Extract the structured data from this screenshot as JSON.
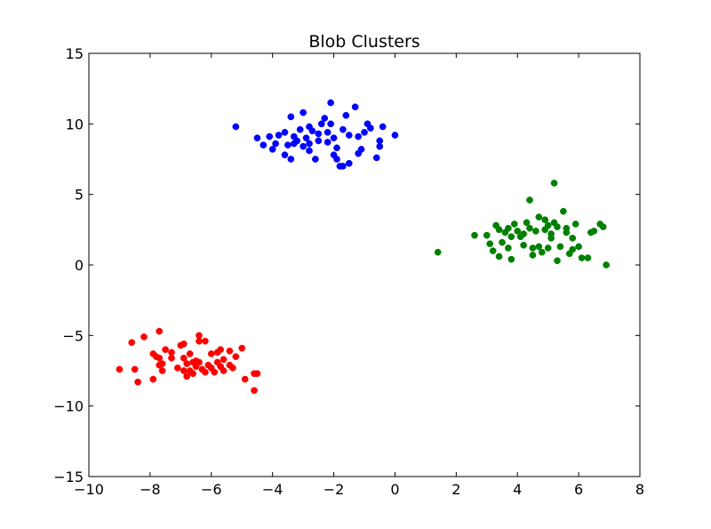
{
  "chart_data": {
    "type": "scatter",
    "title": "Blob Clusters",
    "xlabel": "",
    "ylabel": "",
    "xlim": [
      -10,
      8
    ],
    "ylim": [
      -15,
      15
    ],
    "x_ticks": [
      -10,
      -8,
      -6,
      -4,
      -2,
      0,
      2,
      4,
      6,
      8
    ],
    "y_ticks": [
      -15,
      -10,
      -5,
      0,
      5,
      10,
      15
    ],
    "x_tick_labels": [
      "−10",
      "−8",
      "−6",
      "−4",
      "−2",
      "0",
      "2",
      "4",
      "6",
      "8"
    ],
    "y_tick_labels": [
      "−15",
      "−10",
      "−5",
      "0",
      "5",
      "10",
      "15"
    ],
    "grid": false,
    "legend": "none",
    "series": [
      {
        "color": "#0000ff",
        "points": [
          [
            -5.2,
            9.8
          ],
          [
            -4.5,
            9.0
          ],
          [
            -4.3,
            8.5
          ],
          [
            -4.1,
            9.1
          ],
          [
            -4.0,
            8.2
          ],
          [
            -3.9,
            8.6
          ],
          [
            -3.8,
            9.2
          ],
          [
            -3.6,
            9.4
          ],
          [
            -3.6,
            7.8
          ],
          [
            -3.5,
            8.5
          ],
          [
            -3.4,
            7.5
          ],
          [
            -3.4,
            10.5
          ],
          [
            -3.3,
            9.1
          ],
          [
            -3.3,
            8.6
          ],
          [
            -3.2,
            8.8
          ],
          [
            -3.1,
            9.6
          ],
          [
            -3.0,
            10.8
          ],
          [
            -3.0,
            8.4
          ],
          [
            -2.9,
            9.0
          ],
          [
            -2.8,
            8.6
          ],
          [
            -2.8,
            9.8
          ],
          [
            -2.8,
            8.1
          ],
          [
            -2.7,
            9.5
          ],
          [
            -2.6,
            7.5
          ],
          [
            -2.5,
            8.8
          ],
          [
            -2.5,
            9.3
          ],
          [
            -2.4,
            10.0
          ],
          [
            -2.3,
            10.4
          ],
          [
            -2.2,
            8.7
          ],
          [
            -2.2,
            9.4
          ],
          [
            -2.1,
            10.0
          ],
          [
            -2.1,
            11.5
          ],
          [
            -2.0,
            9.0
          ],
          [
            -2.0,
            7.8
          ],
          [
            -1.9,
            8.3
          ],
          [
            -1.9,
            7.5
          ],
          [
            -1.8,
            7.0
          ],
          [
            -1.7,
            7.0
          ],
          [
            -1.7,
            9.6
          ],
          [
            -1.6,
            10.6
          ],
          [
            -1.5,
            9.2
          ],
          [
            -1.5,
            7.2
          ],
          [
            -1.3,
            11.2
          ],
          [
            -1.2,
            9.1
          ],
          [
            -1.2,
            7.9
          ],
          [
            -1.1,
            8.2
          ],
          [
            -1.0,
            9.4
          ],
          [
            -0.9,
            10.0
          ],
          [
            -0.8,
            9.7
          ],
          [
            -0.6,
            7.6
          ],
          [
            -0.5,
            8.8
          ],
          [
            -0.5,
            8.4
          ],
          [
            -0.4,
            9.8
          ],
          [
            0.0,
            9.2
          ]
        ]
      },
      {
        "color": "#008000",
        "points": [
          [
            1.4,
            0.9
          ],
          [
            2.6,
            2.1
          ],
          [
            3.0,
            2.1
          ],
          [
            3.1,
            1.5
          ],
          [
            3.2,
            1.0
          ],
          [
            3.3,
            2.8
          ],
          [
            3.4,
            2.5
          ],
          [
            3.4,
            0.6
          ],
          [
            3.5,
            1.6
          ],
          [
            3.6,
            2.3
          ],
          [
            3.7,
            2.6
          ],
          [
            3.7,
            1.2
          ],
          [
            3.8,
            0.4
          ],
          [
            3.8,
            2.0
          ],
          [
            3.9,
            2.9
          ],
          [
            4.0,
            2.4
          ],
          [
            4.1,
            2.0
          ],
          [
            4.2,
            2.2
          ],
          [
            4.2,
            1.4
          ],
          [
            4.3,
            3.0
          ],
          [
            4.4,
            2.6
          ],
          [
            4.4,
            4.6
          ],
          [
            4.5,
            1.2
          ],
          [
            4.5,
            0.7
          ],
          [
            4.6,
            2.4
          ],
          [
            4.7,
            3.4
          ],
          [
            4.7,
            1.3
          ],
          [
            4.8,
            0.9
          ],
          [
            4.9,
            2.5
          ],
          [
            4.9,
            3.2
          ],
          [
            5.0,
            2.8
          ],
          [
            5.0,
            1.2
          ],
          [
            5.1,
            2.2
          ],
          [
            5.1,
            1.9
          ],
          [
            5.2,
            5.8
          ],
          [
            5.2,
            3.0
          ],
          [
            5.3,
            2.7
          ],
          [
            5.3,
            0.3
          ],
          [
            5.4,
            1.3
          ],
          [
            5.5,
            3.8
          ],
          [
            5.6,
            2.6
          ],
          [
            5.6,
            2.3
          ],
          [
            5.7,
            0.8
          ],
          [
            5.8,
            1.9
          ],
          [
            5.8,
            1.1
          ],
          [
            5.9,
            2.9
          ],
          [
            6.0,
            1.3
          ],
          [
            6.1,
            0.5
          ],
          [
            6.3,
            0.5
          ],
          [
            6.4,
            2.3
          ],
          [
            6.5,
            2.4
          ],
          [
            6.7,
            2.9
          ],
          [
            6.8,
            2.7
          ],
          [
            6.9,
            0.0
          ]
        ]
      },
      {
        "color": "#ff0000",
        "points": [
          [
            -9.0,
            -7.4
          ],
          [
            -8.6,
            -5.5
          ],
          [
            -8.5,
            -7.4
          ],
          [
            -8.4,
            -8.3
          ],
          [
            -8.2,
            -5.1
          ],
          [
            -7.9,
            -8.1
          ],
          [
            -7.9,
            -6.3
          ],
          [
            -7.8,
            -6.5
          ],
          [
            -7.7,
            -4.7
          ],
          [
            -7.7,
            -6.6
          ],
          [
            -7.7,
            -7.1
          ],
          [
            -7.6,
            -7.0
          ],
          [
            -7.6,
            -7.5
          ],
          [
            -7.5,
            -6.0
          ],
          [
            -7.3,
            -6.6
          ],
          [
            -7.3,
            -6.2
          ],
          [
            -7.1,
            -7.3
          ],
          [
            -7.0,
            -5.7
          ],
          [
            -6.9,
            -5.6
          ],
          [
            -6.9,
            -6.6
          ],
          [
            -6.8,
            -7.0
          ],
          [
            -6.8,
            -7.9
          ],
          [
            -6.7,
            -6.3
          ],
          [
            -6.7,
            -7.5
          ],
          [
            -6.6,
            -6.9
          ],
          [
            -6.6,
            -7.7
          ],
          [
            -6.5,
            -7.2
          ],
          [
            -6.4,
            -5.0
          ],
          [
            -6.4,
            -5.4
          ],
          [
            -6.4,
            -6.9
          ],
          [
            -6.3,
            -7.4
          ],
          [
            -6.2,
            -5.4
          ],
          [
            -6.1,
            -7.1
          ],
          [
            -6.0,
            -6.3
          ],
          [
            -6.0,
            -7.3
          ],
          [
            -5.9,
            -7.6
          ],
          [
            -5.8,
            -6.2
          ],
          [
            -5.7,
            -6.0
          ],
          [
            -5.7,
            -7.2
          ],
          [
            -5.6,
            -6.7
          ],
          [
            -5.6,
            -7.5
          ],
          [
            -5.4,
            -6.1
          ],
          [
            -5.4,
            -7.1
          ],
          [
            -5.2,
            -6.5
          ],
          [
            -5.0,
            -5.9
          ],
          [
            -4.9,
            -8.1
          ],
          [
            -4.6,
            -8.9
          ],
          [
            -4.6,
            -7.7
          ],
          [
            -4.5,
            -7.7
          ],
          [
            -6.9,
            -7.5
          ],
          [
            -6.5,
            -6.8
          ],
          [
            -6.2,
            -7.6
          ],
          [
            -5.3,
            -7.3
          ],
          [
            -5.8,
            -6.9
          ]
        ]
      }
    ]
  }
}
